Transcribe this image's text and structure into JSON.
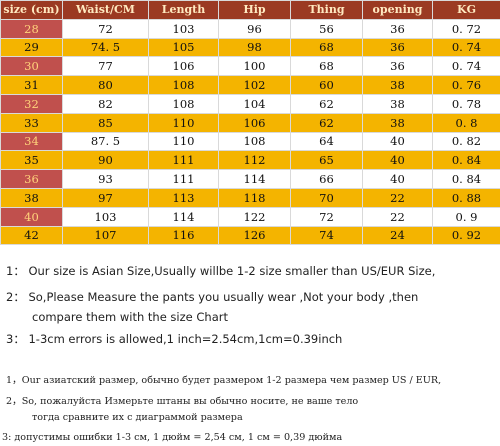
{
  "table": {
    "headers": [
      "size (cm)",
      "Waist/CM",
      "Length",
      "Hip",
      "Thing",
      "opening",
      "KG"
    ],
    "rows": [
      [
        "28",
        "72",
        "103",
        "96",
        "56",
        "36",
        "0. 72"
      ],
      [
        "29",
        "74. 5",
        "105",
        "98",
        "68",
        "36",
        "0. 74"
      ],
      [
        "30",
        "77",
        "106",
        "100",
        "68",
        "36",
        "0. 74"
      ],
      [
        "31",
        "80",
        "108",
        "102",
        "60",
        "38",
        "0. 76"
      ],
      [
        "32",
        "82",
        "108",
        "104",
        "62",
        "38",
        "0. 78"
      ],
      [
        "33",
        "85",
        "110",
        "106",
        "62",
        "38",
        "0. 8"
      ],
      [
        "34",
        "87. 5",
        "110",
        "108",
        "64",
        "40",
        "0. 82"
      ],
      [
        "35",
        "90",
        "111",
        "112",
        "65",
        "40",
        "0. 84"
      ],
      [
        "36",
        "93",
        "111",
        "114",
        "66",
        "40",
        "0. 84"
      ],
      [
        "38",
        "97",
        "113",
        "118",
        "70",
        "22",
        "0. 88"
      ],
      [
        "40",
        "103",
        "114",
        "122",
        "72",
        "22",
        "0. 9"
      ],
      [
        "42",
        "107",
        "116",
        "126",
        "74",
        "24",
        "0. 92"
      ]
    ]
  },
  "notes_en": [
    "1： Our size is Asian Size,Usually willbe 1-2 size smaller than US/EUR Size,",
    "2： So,Please Measure the pants you usually wear ,Not your body ,then",
    "compare them with the size Chart",
    "3： 1-3cm errors is allowed,1 inch=2.54cm,1cm=0.39inch"
  ],
  "notes_ru": [
    "1，Our азиатский размер, обычно будет размером 1-2 размера чем размер US / EUR,",
    "2，So, пожалуйста Измерьте штаны вы обычно носите, не ваше тело",
    "тогда сравните их с диаграммой размера",
    "3: допустимы ошибки 1-3 см, 1 дюйм = 2,54 см, 1 см = 0,39 дюйма"
  ]
}
